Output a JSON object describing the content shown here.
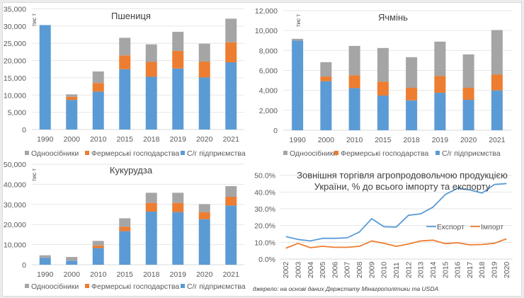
{
  "colors": {
    "individual": "#a5a5a5",
    "farms": "#ed7d31",
    "enterprises": "#5b9bd5",
    "export": "#5b9bd5",
    "import": "#ed7d31"
  },
  "source_note": "джерело: на основі даних Держстату Мінагрополітики та USDA",
  "chart_data": [
    {
      "type": "bar",
      "stacked": true,
      "title": "Пшениця",
      "unit_label": "тис т",
      "categories": [
        "1990",
        "2000",
        "2010",
        "2015",
        "2018",
        "2019",
        "2020",
        "2021"
      ],
      "series": [
        {
          "name": "С/г підприємства",
          "key": "enterprises",
          "values": [
            30300,
            8600,
            11000,
            17500,
            15300,
            17700,
            15100,
            19500
          ]
        },
        {
          "name": "Фермерські господарства",
          "key": "farms",
          "values": [
            0,
            900,
            2500,
            4000,
            4300,
            5100,
            4600,
            5800
          ]
        },
        {
          "name": "Одноосібники",
          "key": "individual",
          "values": [
            0,
            700,
            3350,
            5100,
            5100,
            5550,
            5200,
            6850
          ]
        }
      ],
      "legend_order": [
        "individual",
        "farms",
        "enterprises"
      ],
      "yticks": [
        "0",
        "5,000",
        "10,000",
        "15,000",
        "20,000",
        "25,000",
        "30,000",
        "35,000"
      ],
      "ylim": [
        0,
        35000
      ],
      "ytick_step": 5000,
      "grid": true,
      "legend": "bottom"
    },
    {
      "type": "bar",
      "stacked": true,
      "title": "Ячмінь",
      "unit_label": "тис т",
      "categories": [
        "1990",
        "2000",
        "2010",
        "2015",
        "2018",
        "2019",
        "2020",
        "2021"
      ],
      "series": [
        {
          "name": "С/г підприємства",
          "key": "enterprises",
          "values": [
            8980,
            4920,
            4230,
            3480,
            3000,
            3760,
            3050,
            4000
          ]
        },
        {
          "name": "Фермерські господарства",
          "key": "farms",
          "values": [
            0,
            470,
            1280,
            1390,
            1260,
            1680,
            1210,
            1600
          ]
        },
        {
          "name": "Одноосібники",
          "key": "individual",
          "values": [
            190,
            1440,
            2950,
            3380,
            3070,
            3450,
            3350,
            4450
          ]
        }
      ],
      "legend_order": [
        "individual",
        "farms",
        "enterprises"
      ],
      "yticks": [
        "0",
        "2,000",
        "4,000",
        "6,000",
        "8,000",
        "10,000",
        "12,000"
      ],
      "ylim": [
        0,
        12000
      ],
      "ytick_step": 2000,
      "grid": true,
      "legend": "bottom"
    },
    {
      "type": "bar",
      "stacked": true,
      "title": "Кукурудза",
      "unit_label": "тис т",
      "categories": [
        "1990",
        "2000",
        "2010",
        "2015",
        "2018",
        "2019",
        "2020",
        "2021"
      ],
      "series": [
        {
          "name": "С/г підприємства",
          "key": "enterprises",
          "values": [
            3500,
            2000,
            8300,
            16700,
            26400,
            26200,
            22650,
            29450
          ]
        },
        {
          "name": "Фермерські господарства",
          "key": "farms",
          "values": [
            100,
            0,
            1300,
            2200,
            4350,
            4550,
            3500,
            4350
          ]
        },
        {
          "name": "Одноосібники",
          "key": "individual",
          "values": [
            1100,
            1850,
            2250,
            4200,
            5050,
            5050,
            4000,
            5300
          ]
        }
      ],
      "legend_order": [
        "individual",
        "farms",
        "enterprises"
      ],
      "yticks": [
        "0",
        "10,000",
        "20,000",
        "30,000",
        "40,000",
        "50,000"
      ],
      "ylim": [
        0,
        50000
      ],
      "ytick_step": 10000,
      "grid": true,
      "legend": "bottom"
    },
    {
      "type": "line",
      "title_lines": [
        "Зовнішня торгівля агропродовольчою продукцією",
        "України, % до всього імпорту та експорту"
      ],
      "x": [
        "2002",
        "2003",
        "2004",
        "2005",
        "2006",
        "2007",
        "2008",
        "2009",
        "2010",
        "2011",
        "2012",
        "2013",
        "2014",
        "2015",
        "2016",
        "2017",
        "2018",
        "2019",
        "2020"
      ],
      "series": [
        {
          "name": "Експорт",
          "key": "export",
          "values": [
            13.4,
            11.7,
            10.8,
            12.4,
            12.4,
            12.7,
            16.2,
            24.1,
            19.3,
            19.1,
            26.1,
            27.0,
            31.0,
            38.5,
            42.3,
            41.3,
            39.4,
            44.5,
            45.1
          ]
        },
        {
          "name": "Імпорт",
          "key": "import",
          "values": [
            6.5,
            9.4,
            6.8,
            7.6,
            7.0,
            7.0,
            7.6,
            10.8,
            9.4,
            7.6,
            9.0,
            10.8,
            11.3,
            9.2,
            9.7,
            8.5,
            8.7,
            9.4,
            12.1
          ]
        }
      ],
      "yticks": [
        "0.0%",
        "10.0%",
        "20.0%",
        "30.0%",
        "40.0%",
        "50.0%"
      ],
      "ylim": [
        0,
        50
      ],
      "ytick_step": 10,
      "ylabel": "",
      "xlabel": "",
      "grid": true,
      "legend": "right-middle"
    }
  ]
}
